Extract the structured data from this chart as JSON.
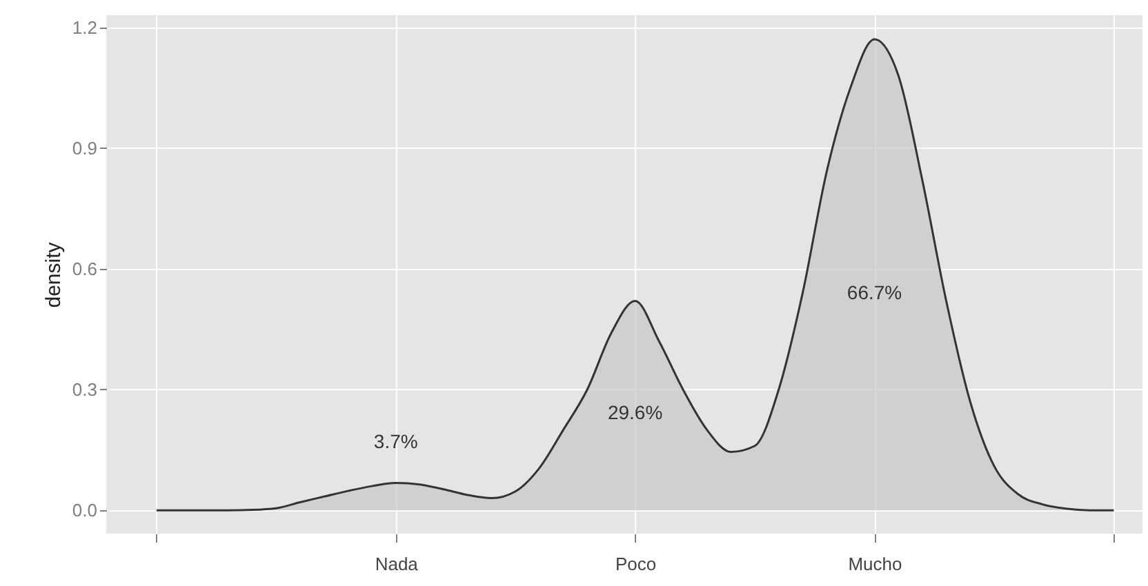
{
  "chart_data": {
    "type": "area",
    "ylabel": "density",
    "categories": [
      null,
      null,
      null,
      null,
      null,
      null,
      null,
      null,
      null,
      null,
      "Nada",
      null,
      null,
      null,
      null,
      null,
      null,
      null,
      null,
      null,
      "Poco",
      null,
      null,
      null,
      null,
      null,
      null,
      null,
      null,
      null,
      "Mucho",
      null,
      null,
      null,
      null,
      null,
      null,
      null,
      null,
      null,
      null
    ],
    "series": [
      {
        "color": "#c8c8c8",
        "values": [
          0,
          0,
          0,
          0,
          0.001,
          0.005,
          0.02,
          0.034,
          0.048,
          0.06,
          0.068,
          0.064,
          0.052,
          0.038,
          0.03,
          0.047,
          0.105,
          0.2,
          0.3,
          0.44,
          0.52,
          0.42,
          0.3,
          0.2,
          0.145,
          0.16,
          0.3,
          0.54,
          0.84,
          1.05,
          1.17,
          1.08,
          0.82,
          0.52,
          0.27,
          0.11,
          0.04,
          0.015,
          0.004,
          0,
          0
        ]
      }
    ],
    "annotations": [
      "3.7%",
      "29.6%",
      "66.7%"
    ],
    "ylim": [
      -0.058,
      1.23
    ],
    "yticks": [
      {
        "value": 0,
        "label": "0.0"
      },
      {
        "value": 0.3,
        "label": "0.3"
      },
      {
        "value": 0.6,
        "label": "0.6"
      },
      {
        "value": 0.9,
        "label": "0.9"
      },
      {
        "value": 1.2,
        "label": "1.2"
      }
    ],
    "grid": true
  }
}
